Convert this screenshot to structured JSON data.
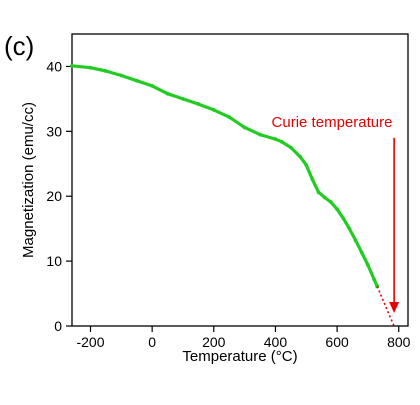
{
  "chart_data": {
    "type": "line",
    "panel_label": "(c)",
    "xlabel": "Temperature (°C)",
    "ylabel": "Magnetization (emu/cc)",
    "xlim": [
      -260,
      830
    ],
    "ylim": [
      0,
      45
    ],
    "x_ticks": [
      -200,
      0,
      200,
      400,
      600,
      800
    ],
    "x_tick_labels": [
      "-200",
      "0",
      "200",
      "400",
      "600",
      "800"
    ],
    "y_ticks": [
      0,
      10,
      20,
      30,
      40
    ],
    "y_tick_labels": [
      "0",
      "10",
      "20",
      "30",
      "40"
    ],
    "grid": false,
    "series": [
      {
        "style": "measured",
        "color": "#22cc22",
        "x": [
          -260,
          -200,
          -150,
          -100,
          -50,
          0,
          50,
          100,
          150,
          200,
          250,
          300,
          350,
          400,
          420,
          450,
          480,
          500,
          520,
          540,
          560,
          580,
          600,
          620,
          640,
          660,
          680,
          700,
          720,
          730
        ],
        "y": [
          40.1,
          39.8,
          39.3,
          38.6,
          37.8,
          37.0,
          35.8,
          35.0,
          34.2,
          33.3,
          32.2,
          30.6,
          29.5,
          28.8,
          28.4,
          27.5,
          26.1,
          24.8,
          22.6,
          20.6,
          19.8,
          19.1,
          18.0,
          16.6,
          15.0,
          13.2,
          11.3,
          9.4,
          7.2,
          6.1
        ]
      },
      {
        "style": "extrapolation",
        "color": "#e60000",
        "x": [
          730,
          750,
          770,
          785
        ],
        "y": [
          6.1,
          3.9,
          1.6,
          0
        ]
      }
    ],
    "annotation": {
      "text": "Curie temperature",
      "color": "#e60000",
      "arrow_x": 785,
      "arrow_from_y": 29.0,
      "arrow_to_y": 2.0
    }
  }
}
